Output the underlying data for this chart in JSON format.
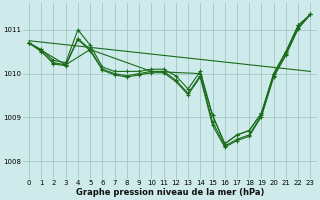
{
  "bg_color": "#ceeaea",
  "grid_color": "#a8cccc",
  "line_color": "#1a6b1a",
  "xlabel": "Graphe pression niveau de la mer (hPa)",
  "ylim": [
    1007.6,
    1011.6
  ],
  "xlim": [
    -0.5,
    23.5
  ],
  "yticks": [
    1008,
    1009,
    1010,
    1011
  ],
  "xticks": [
    0,
    1,
    2,
    3,
    4,
    5,
    6,
    7,
    8,
    9,
    10,
    11,
    12,
    13,
    14,
    15,
    16,
    17,
    18,
    19,
    20,
    21,
    22,
    23
  ],
  "trend_x": [
    0,
    23
  ],
  "trend_y": [
    1010.75,
    1010.05
  ],
  "line_main_x": [
    0,
    1,
    2,
    3,
    4,
    5,
    6,
    7,
    8,
    9,
    10,
    11,
    12,
    13,
    14,
    15,
    16,
    17,
    18,
    19,
    20,
    21,
    22,
    23
  ],
  "line_main_y": [
    1010.7,
    1010.55,
    1010.3,
    1010.25,
    1011.0,
    1010.65,
    1010.15,
    1010.05,
    1010.05,
    1010.05,
    1010.1,
    1010.1,
    1009.95,
    1009.65,
    1010.05,
    1009.05,
    1008.4,
    1008.6,
    1008.7,
    1009.1,
    1010.0,
    1010.5,
    1011.1,
    1011.35
  ],
  "line_b_x": [
    0,
    1,
    2,
    3,
    4,
    5,
    6,
    7,
    8,
    9,
    10,
    11,
    12,
    13,
    14,
    15,
    16,
    17,
    18,
    19,
    20,
    21,
    22,
    23
  ],
  "line_b_y": [
    1010.7,
    1010.5,
    1010.25,
    1010.2,
    1010.8,
    1010.55,
    1010.1,
    1010.0,
    1009.95,
    1010.0,
    1010.05,
    1010.05,
    1009.85,
    1009.55,
    1009.95,
    1008.9,
    1008.35,
    1008.5,
    1008.6,
    1009.05,
    1009.95,
    1010.45,
    1011.05,
    1011.35
  ],
  "line_c_x": [
    0,
    1,
    2,
    3,
    4,
    5,
    6,
    7,
    8,
    9,
    10,
    11,
    12,
    13,
    14,
    15,
    16,
    17,
    18,
    19,
    20,
    21,
    22,
    23
  ],
  "line_c_y": [
    1010.7,
    1010.52,
    1010.22,
    1010.18,
    1010.78,
    1010.52,
    1010.08,
    1009.97,
    1009.92,
    1009.97,
    1010.02,
    1010.02,
    1009.82,
    1009.52,
    1009.92,
    1008.82,
    1008.32,
    1008.47,
    1008.57,
    1009.02,
    1009.92,
    1010.42,
    1011.02,
    1011.35
  ],
  "line_sparse_x": [
    0,
    3,
    5,
    10,
    14,
    15,
    16,
    17,
    18,
    19,
    20,
    21,
    22,
    23
  ],
  "line_sparse_y": [
    1010.7,
    1010.2,
    1010.55,
    1010.05,
    1010.0,
    1009.05,
    1008.4,
    1008.6,
    1008.7,
    1009.1,
    1010.0,
    1010.5,
    1011.1,
    1011.35
  ]
}
